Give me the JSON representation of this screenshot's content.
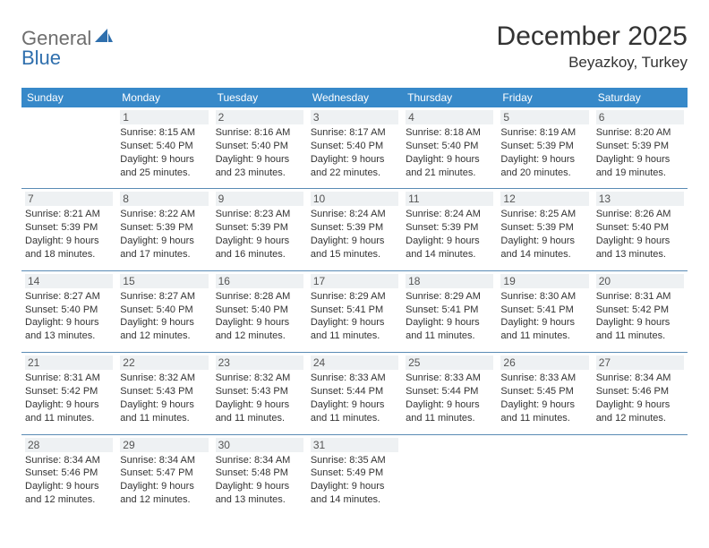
{
  "logo": {
    "left": "General",
    "right": "Blue"
  },
  "title": "December 2025",
  "location": "Beyazkoy, Turkey",
  "header_bg": "#3789c9",
  "header_text_color": "#ffffff",
  "row_border_color": "#5a8bb5",
  "daynum_bg": "#eef1f3",
  "text_color": "#333333",
  "days_of_week": [
    "Sunday",
    "Monday",
    "Tuesday",
    "Wednesday",
    "Thursday",
    "Friday",
    "Saturday"
  ],
  "weeks": [
    [
      null,
      {
        "n": "1",
        "sr": "Sunrise: 8:15 AM",
        "ss": "Sunset: 5:40 PM",
        "dl": "Daylight: 9 hours and 25 minutes."
      },
      {
        "n": "2",
        "sr": "Sunrise: 8:16 AM",
        "ss": "Sunset: 5:40 PM",
        "dl": "Daylight: 9 hours and 23 minutes."
      },
      {
        "n": "3",
        "sr": "Sunrise: 8:17 AM",
        "ss": "Sunset: 5:40 PM",
        "dl": "Daylight: 9 hours and 22 minutes."
      },
      {
        "n": "4",
        "sr": "Sunrise: 8:18 AM",
        "ss": "Sunset: 5:40 PM",
        "dl": "Daylight: 9 hours and 21 minutes."
      },
      {
        "n": "5",
        "sr": "Sunrise: 8:19 AM",
        "ss": "Sunset: 5:39 PM",
        "dl": "Daylight: 9 hours and 20 minutes."
      },
      {
        "n": "6",
        "sr": "Sunrise: 8:20 AM",
        "ss": "Sunset: 5:39 PM",
        "dl": "Daylight: 9 hours and 19 minutes."
      }
    ],
    [
      {
        "n": "7",
        "sr": "Sunrise: 8:21 AM",
        "ss": "Sunset: 5:39 PM",
        "dl": "Daylight: 9 hours and 18 minutes."
      },
      {
        "n": "8",
        "sr": "Sunrise: 8:22 AM",
        "ss": "Sunset: 5:39 PM",
        "dl": "Daylight: 9 hours and 17 minutes."
      },
      {
        "n": "9",
        "sr": "Sunrise: 8:23 AM",
        "ss": "Sunset: 5:39 PM",
        "dl": "Daylight: 9 hours and 16 minutes."
      },
      {
        "n": "10",
        "sr": "Sunrise: 8:24 AM",
        "ss": "Sunset: 5:39 PM",
        "dl": "Daylight: 9 hours and 15 minutes."
      },
      {
        "n": "11",
        "sr": "Sunrise: 8:24 AM",
        "ss": "Sunset: 5:39 PM",
        "dl": "Daylight: 9 hours and 14 minutes."
      },
      {
        "n": "12",
        "sr": "Sunrise: 8:25 AM",
        "ss": "Sunset: 5:39 PM",
        "dl": "Daylight: 9 hours and 14 minutes."
      },
      {
        "n": "13",
        "sr": "Sunrise: 8:26 AM",
        "ss": "Sunset: 5:40 PM",
        "dl": "Daylight: 9 hours and 13 minutes."
      }
    ],
    [
      {
        "n": "14",
        "sr": "Sunrise: 8:27 AM",
        "ss": "Sunset: 5:40 PM",
        "dl": "Daylight: 9 hours and 13 minutes."
      },
      {
        "n": "15",
        "sr": "Sunrise: 8:27 AM",
        "ss": "Sunset: 5:40 PM",
        "dl": "Daylight: 9 hours and 12 minutes."
      },
      {
        "n": "16",
        "sr": "Sunrise: 8:28 AM",
        "ss": "Sunset: 5:40 PM",
        "dl": "Daylight: 9 hours and 12 minutes."
      },
      {
        "n": "17",
        "sr": "Sunrise: 8:29 AM",
        "ss": "Sunset: 5:41 PM",
        "dl": "Daylight: 9 hours and 11 minutes."
      },
      {
        "n": "18",
        "sr": "Sunrise: 8:29 AM",
        "ss": "Sunset: 5:41 PM",
        "dl": "Daylight: 9 hours and 11 minutes."
      },
      {
        "n": "19",
        "sr": "Sunrise: 8:30 AM",
        "ss": "Sunset: 5:41 PM",
        "dl": "Daylight: 9 hours and 11 minutes."
      },
      {
        "n": "20",
        "sr": "Sunrise: 8:31 AM",
        "ss": "Sunset: 5:42 PM",
        "dl": "Daylight: 9 hours and 11 minutes."
      }
    ],
    [
      {
        "n": "21",
        "sr": "Sunrise: 8:31 AM",
        "ss": "Sunset: 5:42 PM",
        "dl": "Daylight: 9 hours and 11 minutes."
      },
      {
        "n": "22",
        "sr": "Sunrise: 8:32 AM",
        "ss": "Sunset: 5:43 PM",
        "dl": "Daylight: 9 hours and 11 minutes."
      },
      {
        "n": "23",
        "sr": "Sunrise: 8:32 AM",
        "ss": "Sunset: 5:43 PM",
        "dl": "Daylight: 9 hours and 11 minutes."
      },
      {
        "n": "24",
        "sr": "Sunrise: 8:33 AM",
        "ss": "Sunset: 5:44 PM",
        "dl": "Daylight: 9 hours and 11 minutes."
      },
      {
        "n": "25",
        "sr": "Sunrise: 8:33 AM",
        "ss": "Sunset: 5:44 PM",
        "dl": "Daylight: 9 hours and 11 minutes."
      },
      {
        "n": "26",
        "sr": "Sunrise: 8:33 AM",
        "ss": "Sunset: 5:45 PM",
        "dl": "Daylight: 9 hours and 11 minutes."
      },
      {
        "n": "27",
        "sr": "Sunrise: 8:34 AM",
        "ss": "Sunset: 5:46 PM",
        "dl": "Daylight: 9 hours and 12 minutes."
      }
    ],
    [
      {
        "n": "28",
        "sr": "Sunrise: 8:34 AM",
        "ss": "Sunset: 5:46 PM",
        "dl": "Daylight: 9 hours and 12 minutes."
      },
      {
        "n": "29",
        "sr": "Sunrise: 8:34 AM",
        "ss": "Sunset: 5:47 PM",
        "dl": "Daylight: 9 hours and 12 minutes."
      },
      {
        "n": "30",
        "sr": "Sunrise: 8:34 AM",
        "ss": "Sunset: 5:48 PM",
        "dl": "Daylight: 9 hours and 13 minutes."
      },
      {
        "n": "31",
        "sr": "Sunrise: 8:35 AM",
        "ss": "Sunset: 5:49 PM",
        "dl": "Daylight: 9 hours and 14 minutes."
      },
      null,
      null,
      null
    ]
  ]
}
